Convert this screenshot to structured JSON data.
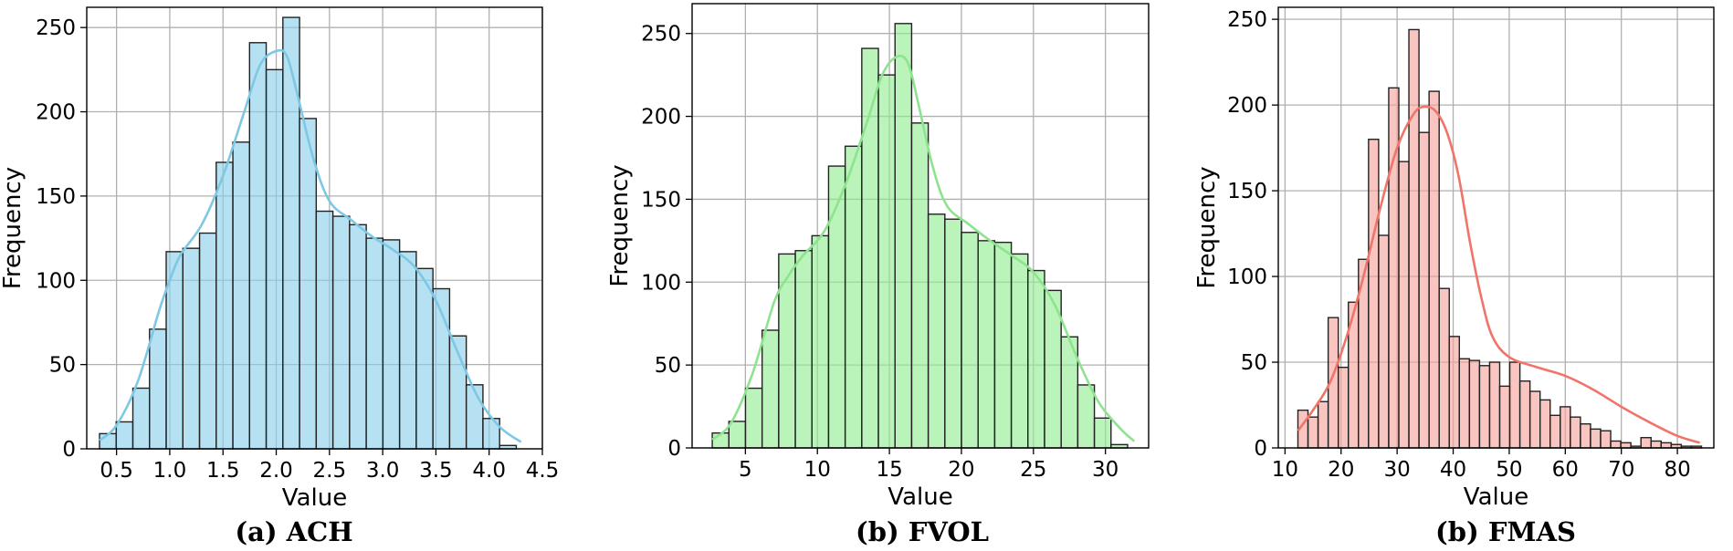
{
  "captions": [
    "(a) ACH",
    "(b) FVOL",
    "(b) FMAS"
  ],
  "chart_data": [
    {
      "type": "bar",
      "subtype": "histogram",
      "xlabel": "Value",
      "ylabel": "Frequency",
      "xlim": [
        0.22,
        4.5
      ],
      "ylim": [
        0,
        262
      ],
      "xticks": [
        0.5,
        1.0,
        1.5,
        2.0,
        2.5,
        3.0,
        3.5,
        4.0,
        4.5
      ],
      "xtick_labels": [
        "0.5",
        "1.0",
        "1.5",
        "2.0",
        "2.5",
        "3.0",
        "3.5",
        "4.0",
        "4.5"
      ],
      "yticks": [
        0,
        50,
        100,
        150,
        200,
        250
      ],
      "ytick_labels": [
        "0",
        "50",
        "100",
        "150",
        "200",
        "250"
      ],
      "grid": true,
      "color": "#87ceeb",
      "kde_color": "#7ec8e3",
      "bins": {
        "start": 0.34,
        "width": 0.1566,
        "counts": [
          9,
          16,
          36,
          71,
          117,
          119,
          128,
          170,
          182,
          241,
          225,
          256,
          196,
          141,
          138,
          133,
          125,
          124,
          117,
          107,
          95,
          67,
          38,
          18,
          2
        ]
      },
      "kde": {
        "x": [
          0.34,
          0.5,
          0.7,
          0.9,
          1.0,
          1.1,
          1.3,
          1.5,
          1.7,
          1.85,
          2.0,
          2.1,
          2.2,
          2.35,
          2.5,
          2.7,
          2.9,
          3.1,
          3.3,
          3.5,
          3.7,
          3.9,
          4.1,
          4.3
        ],
        "y": [
          5,
          14,
          40,
          82,
          100,
          115,
          133,
          162,
          200,
          228,
          236,
          233,
          210,
          172,
          147,
          136,
          126,
          118,
          108,
          88,
          58,
          30,
          13,
          4
        ]
      }
    },
    {
      "type": "bar",
      "subtype": "histogram",
      "xlabel": "Value",
      "ylabel": "Frequency",
      "xlim": [
        1.3,
        33.0
      ],
      "ylim": [
        0,
        268
      ],
      "xticks": [
        5,
        10,
        15,
        20,
        25,
        30
      ],
      "xtick_labels": [
        "5",
        "10",
        "15",
        "20",
        "25",
        "30"
      ],
      "yticks": [
        0,
        50,
        100,
        150,
        200,
        250
      ],
      "ytick_labels": [
        "0",
        "50",
        "100",
        "150",
        "200",
        "250"
      ],
      "grid": true,
      "color": "#90ee90",
      "kde_color": "#8ee38e",
      "bins": {
        "start": 2.7,
        "width": 1.1536,
        "counts": [
          9,
          16,
          36,
          71,
          117,
          119,
          128,
          170,
          182,
          241,
          225,
          256,
          196,
          141,
          138,
          130,
          125,
          124,
          117,
          107,
          95,
          67,
          38,
          18,
          2
        ]
      },
      "kde": {
        "x": [
          2.7,
          4.0,
          5.5,
          7.0,
          8.0,
          9.0,
          10.5,
          12.0,
          13.5,
          14.5,
          15.5,
          16.3,
          17.0,
          18.0,
          19.0,
          20.5,
          22.0,
          23.5,
          25.0,
          26.5,
          28.0,
          29.5,
          31.0,
          32.0
        ],
        "y": [
          5,
          15,
          45,
          88,
          104,
          116,
          131,
          160,
          198,
          225,
          236,
          232,
          208,
          170,
          146,
          135,
          125,
          116,
          106,
          86,
          55,
          28,
          12,
          4
        ]
      }
    },
    {
      "type": "bar",
      "subtype": "histogram",
      "xlabel": "Value",
      "ylabel": "Frequency",
      "xlim": [
        8.8,
        86.5
      ],
      "ylim": [
        0,
        257
      ],
      "xticks": [
        10,
        20,
        30,
        40,
        50,
        60,
        70,
        80
      ],
      "xtick_labels": [
        "10",
        "20",
        "30",
        "40",
        "50",
        "60",
        "70",
        "80"
      ],
      "yticks": [
        0,
        50,
        100,
        150,
        200,
        250
      ],
      "ytick_labels": [
        "0",
        "50",
        "100",
        "150",
        "200",
        "250"
      ],
      "grid": true,
      "color": "#f4a29a",
      "kde_color": "#f0746a",
      "bins": {
        "start": 12.3,
        "width": 1.8,
        "counts": [
          22,
          18,
          27,
          76,
          47,
          85,
          110,
          180,
          124,
          210,
          167,
          244,
          184,
          208,
          93,
          65,
          52,
          51,
          48,
          50,
          36,
          50,
          39,
          33,
          28,
          19,
          24,
          18,
          14,
          11,
          10,
          4,
          3,
          1,
          6,
          4,
          3,
          2,
          1,
          1
        ]
      },
      "kde": {
        "x": [
          12.3,
          15,
          18,
          21,
          24,
          27,
          30,
          33,
          35,
          37,
          39,
          41,
          43,
          45,
          47,
          50,
          55,
          60,
          65,
          70,
          75,
          80,
          84
        ],
        "y": [
          10,
          22,
          38,
          65,
          100,
          140,
          175,
          195,
          199,
          196,
          183,
          158,
          120,
          88,
          65,
          53,
          47,
          42,
          34,
          24,
          15,
          7,
          3
        ]
      }
    }
  ]
}
